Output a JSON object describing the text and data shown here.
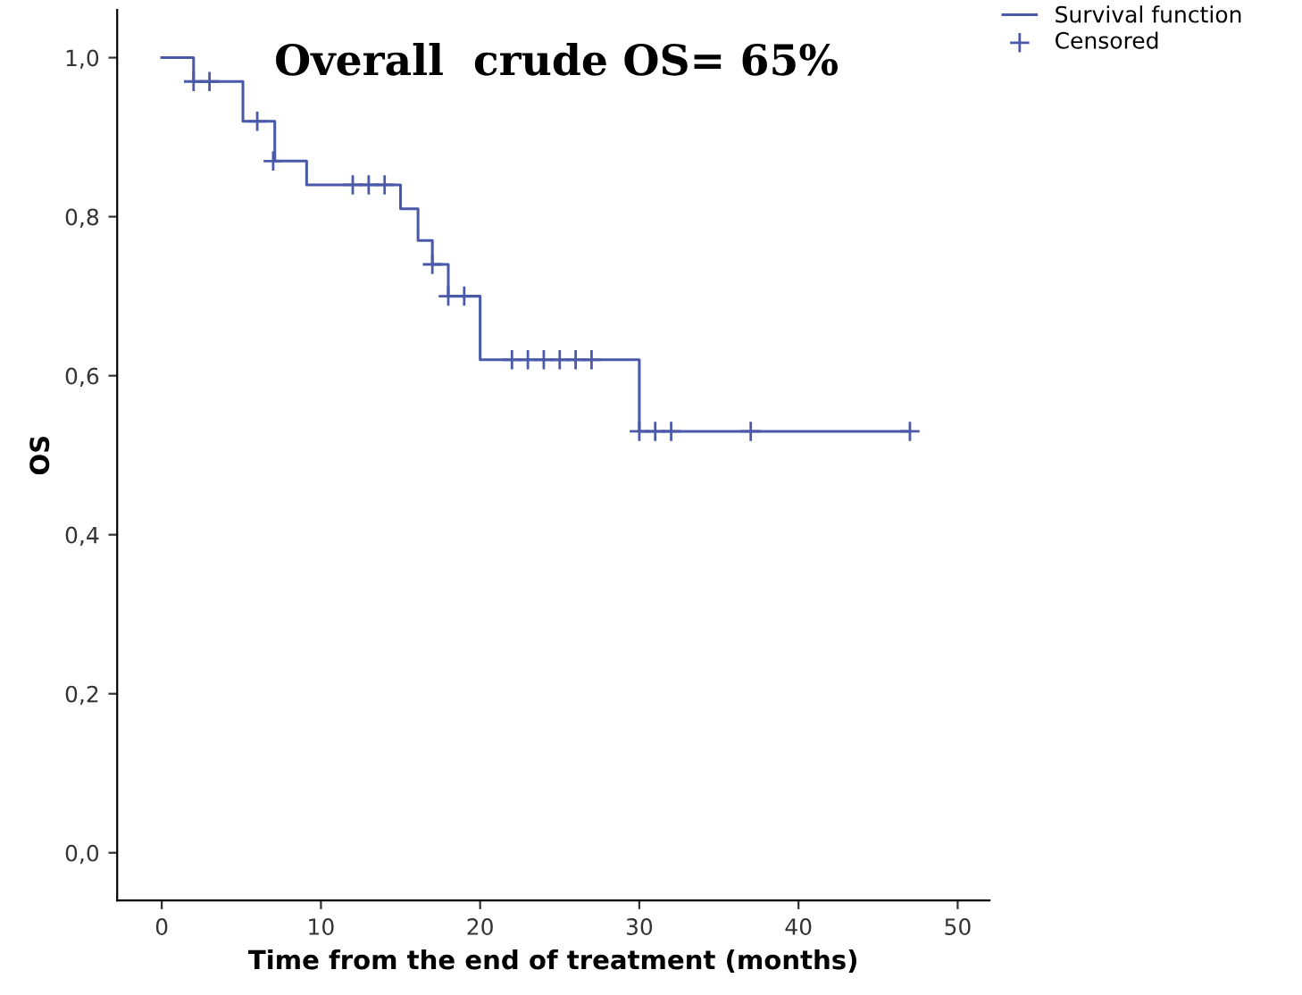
{
  "chart_data": {
    "type": "step",
    "xlabel": "Time from the end of treatment (months)",
    "ylabel": "OS",
    "annotations": [
      "Overall  crude OS= 65%"
    ],
    "series": [
      {
        "name": "Survival function",
        "color": "#4a5aa8",
        "x": [
          0,
          2,
          5.1,
          7.1,
          9.1,
          15,
          16.1,
          17,
          18,
          20,
          30,
          47
        ],
        "values": [
          1,
          0.97,
          0.92,
          0.87,
          0.84,
          0.81,
          0.77,
          0.74,
          0.7,
          0.62,
          0.53,
          0.53
        ]
      },
      {
        "name": "Censored",
        "type": "scatter",
        "marker": "cross",
        "color": "#4a5aa8",
        "x": [
          2,
          3,
          6,
          7,
          12,
          13,
          14,
          17,
          18,
          19,
          22,
          23,
          24,
          25,
          26,
          27,
          30,
          31,
          32,
          37,
          47
        ],
        "values": [
          0.97,
          0.97,
          0.92,
          0.87,
          0.84,
          0.84,
          0.84,
          0.74,
          0.7,
          0.7,
          0.62,
          0.62,
          0.62,
          0.62,
          0.62,
          0.62,
          0.53,
          0.53,
          0.53,
          0.53,
          0.53
        ]
      }
    ],
    "xlim": [
      -2.8,
      52
    ],
    "ylim": [
      -0.06,
      1.06
    ],
    "xticks": [
      0,
      10,
      20,
      30,
      40,
      50
    ],
    "yticks": [
      {
        "value": 0,
        "label": "0,0"
      },
      {
        "value": 0.2,
        "label": "0,2"
      },
      {
        "value": 0.4,
        "label": "0,4"
      },
      {
        "value": 0.6,
        "label": "0,6"
      },
      {
        "value": 0.8,
        "label": "0,8"
      },
      {
        "value": 1,
        "label": "1,0"
      }
    ],
    "grid": false,
    "legend": "top right"
  }
}
